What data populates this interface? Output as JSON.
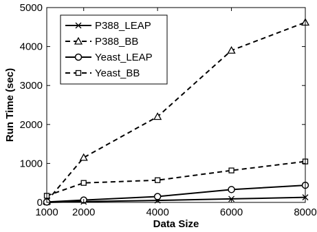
{
  "chart_data": {
    "type": "line",
    "xlabel": "Data Size",
    "ylabel": "Run Time (sec)",
    "xlim": [
      1000,
      8000
    ],
    "ylim": [
      0,
      5000
    ],
    "xticks": [
      1000,
      2000,
      4000,
      6000,
      8000
    ],
    "yticks": [
      0,
      1000,
      2000,
      3000,
      4000,
      5000
    ],
    "grid": false,
    "legend_position": "top-left",
    "series": [
      {
        "name": "P388_LEAP",
        "x": [
          1000,
          2000,
          4000,
          6000,
          8000
        ],
        "y": [
          0,
          20,
          50,
          90,
          130
        ],
        "marker": "x",
        "dash": "solid",
        "color": "#000000"
      },
      {
        "name": "P388_BB",
        "x": [
          1000,
          2000,
          4000,
          6000,
          8000
        ],
        "y": [
          30,
          1150,
          2200,
          3900,
          4620
        ],
        "marker": "triangle",
        "dash": "dashed",
        "color": "#000000"
      },
      {
        "name": "Yeast_LEAP",
        "x": [
          1000,
          2000,
          4000,
          6000,
          8000
        ],
        "y": [
          10,
          60,
          150,
          330,
          440
        ],
        "marker": "circle",
        "dash": "solid",
        "color": "#000000"
      },
      {
        "name": "Yeast_BB",
        "x": [
          1000,
          2000,
          4000,
          6000,
          8000
        ],
        "y": [
          170,
          500,
          570,
          820,
          1050
        ],
        "marker": "square",
        "dash": "dashed",
        "color": "#000000"
      }
    ]
  }
}
